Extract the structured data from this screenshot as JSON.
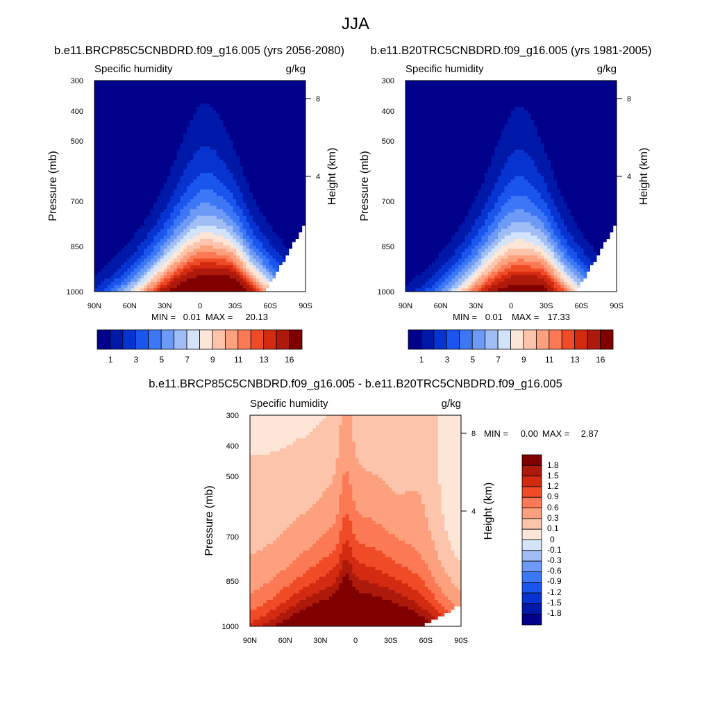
{
  "figure": {
    "title": "JJA"
  },
  "chart_data": [
    {
      "type": "heatmap",
      "title": "b.e11.BRCP85C5CNBDRD.f09_g16.005 (yrs 2056-2080)",
      "left_label": "Specific humidity",
      "right_label": "g/kg",
      "ylabel": "Pressure (mb)",
      "y2label": "Height (km)",
      "x_ticks": [
        "90N",
        "60N",
        "30N",
        "0",
        "30S",
        "60S",
        "90S"
      ],
      "y_ticks": [
        "300",
        "400",
        "500",
        "700",
        "850",
        "1000"
      ],
      "y2_ticks": [
        "8",
        "4"
      ],
      "ylim": [
        1000,
        300
      ],
      "stats": {
        "min_label": "MIN =",
        "min": "0.01",
        "max_label": "MAX =",
        "max": "20.13"
      },
      "colorbar": {
        "ticks": [
          "1",
          "3",
          "5",
          "7",
          "9",
          "11",
          "13",
          "16"
        ]
      },
      "field": {
        "peak_lat": -5,
        "amp": 20.13,
        "surf_w": 45,
        "top_w": 13,
        "h": 0.26,
        "ridge_lat": -28,
        "ridge_amp": 0.12
      }
    },
    {
      "type": "heatmap",
      "title": "b.e11.B20TRC5CNBDRD.f09_g16.005 (yrs 1981-2005)",
      "left_label": "Specific humidity",
      "right_label": "g/kg",
      "ylabel": "Pressure (mb)",
      "y2label": "Height (km)",
      "x_ticks": [
        "90N",
        "60N",
        "30N",
        "0",
        "30S",
        "60S",
        "90S"
      ],
      "y_ticks": [
        "300",
        "400",
        "500",
        "700",
        "850",
        "1000"
      ],
      "y2_ticks": [
        "8",
        "4"
      ],
      "ylim": [
        1000,
        300
      ],
      "stats": {
        "min_label": "MIN =",
        "min": "0.01",
        "max_label": "MAX =",
        "max": "17.33"
      },
      "colorbar": {
        "ticks": [
          "1",
          "3",
          "5",
          "7",
          "9",
          "11",
          "13",
          "16"
        ]
      },
      "field": {
        "peak_lat": -7,
        "amp": 17.33,
        "surf_w": 42,
        "top_w": 12,
        "h": 0.25,
        "ridge_lat": -28,
        "ridge_amp": 0.1
      }
    },
    {
      "type": "heatmap",
      "title": "b.e11.BRCP85C5CNBDRD.f09_g16.005 - b.e11.B20TRC5CNBDRD.f09_g16.005",
      "left_label": "Specific humidity",
      "right_label": "g/kg",
      "ylabel": "Pressure (mb)",
      "y2label": "Height (km)",
      "x_ticks": [
        "90N",
        "60N",
        "30N",
        "0",
        "30S",
        "60S",
        "90S"
      ],
      "y_ticks": [
        "300",
        "400",
        "500",
        "700",
        "850",
        "1000"
      ],
      "y2_ticks": [
        "8",
        "4"
      ],
      "ylim": [
        1000,
        300
      ],
      "stats": {
        "min_label": "MIN =",
        "min": "0.00",
        "max_label": "MAX =",
        "max": "2.87"
      },
      "colorbar": {
        "ticks": [
          "1.8",
          "1.5",
          "1.2",
          "0.9",
          "0.6",
          "0.3",
          "0.1",
          "0",
          "-0.1",
          "-0.3",
          "-0.6",
          "-0.9",
          "-1.2",
          "-1.5",
          "-1.8"
        ]
      },
      "field": {
        "peak_lat": -6,
        "amp": 2.87,
        "surf_w": 58,
        "top_w": 22,
        "h": 0.4,
        "ridge_lat": -30,
        "ridge_amp": 0.08
      }
    }
  ],
  "palettes": {
    "absolute": [
      "#00008a",
      "#0018a8",
      "#0734d0",
      "#1a55ee",
      "#3c77f5",
      "#6e9af7",
      "#a0bdf5",
      "#d2e3fa",
      "#fde6d8",
      "#fcc5ab",
      "#fca07e",
      "#fb7a55",
      "#f04b27",
      "#d32b12",
      "#ad1a0b",
      "#800000"
    ],
    "difference": [
      "#800000",
      "#ad1a0b",
      "#d32b12",
      "#f04b27",
      "#fb7a55",
      "#fca07e",
      "#fcc5ab",
      "#fde6d8",
      "#d2e3fa",
      "#a0bdf5",
      "#6e9af7",
      "#3c77f5",
      "#1a55ee",
      "#0734d0",
      "#0018a8",
      "#00008a"
    ]
  }
}
